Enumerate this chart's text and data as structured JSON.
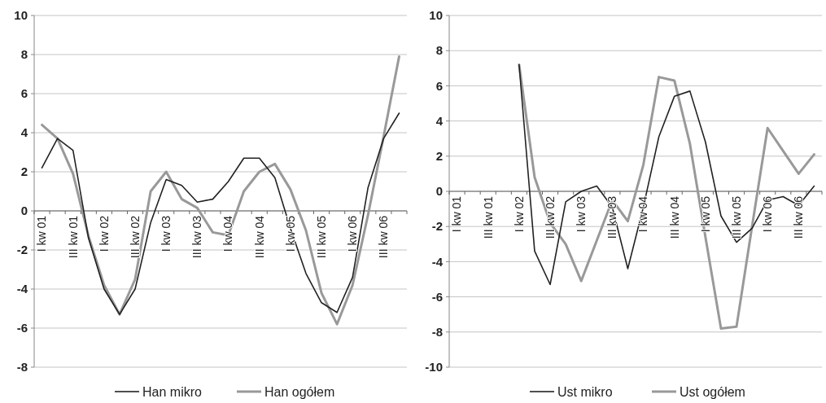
{
  "chart_data": [
    {
      "type": "line",
      "categories": [
        "I kw 01",
        null,
        "III kw 01",
        null,
        "I kw 02",
        null,
        "III kw 02",
        null,
        "I kw 03",
        null,
        "III kw 03",
        null,
        "I kw 04",
        null,
        "III kw 04",
        null,
        "I kw 05",
        null,
        "III kw 05",
        null,
        "I kw 06",
        null,
        "III kw 06",
        null
      ],
      "series": [
        {
          "name": "Han mikro",
          "color": "#222222",
          "values": [
            2.2,
            3.7,
            3.1,
            -1.4,
            -4.0,
            -5.3,
            -4.0,
            -0.6,
            1.6,
            1.3,
            0.45,
            0.6,
            1.5,
            2.7,
            2.7,
            1.7,
            -0.9,
            -3.2,
            -4.7,
            -5.2,
            -3.4,
            1.2,
            3.7,
            5.0
          ]
        },
        {
          "name": "Han ogółem",
          "color": "#999999",
          "values": [
            4.4,
            3.7,
            1.9,
            -1.3,
            -3.8,
            -5.3,
            -3.5,
            1.0,
            2.0,
            0.6,
            0.15,
            -1.1,
            -1.25,
            1.0,
            2.0,
            2.4,
            1.1,
            -1.0,
            -4.2,
            -5.8,
            -3.8,
            -0.2,
            3.8,
            7.9
          ]
        }
      ],
      "ylim": [
        -8,
        10
      ],
      "yticks": [
        -8,
        -6,
        -4,
        -2,
        0,
        2,
        4,
        6,
        8,
        10
      ],
      "grid": "y",
      "legend": "bottom"
    },
    {
      "type": "line",
      "categories": [
        "I kw 01",
        null,
        "III kw 01",
        null,
        "I kw 02",
        null,
        "III kw 02",
        null,
        "I kw 03",
        null,
        "III kw 03",
        null,
        "I kw 04",
        null,
        "III kw 04",
        null,
        "I kw 05",
        null,
        "III kw 05",
        null,
        "I kw 06",
        null,
        "III kw 06",
        null
      ],
      "series": [
        {
          "name": "Ust mikro",
          "color": "#222222",
          "values": [
            null,
            null,
            null,
            null,
            7.2,
            -3.4,
            -5.3,
            -0.6,
            0.0,
            0.3,
            -0.9,
            -4.4,
            -0.9,
            3.1,
            5.4,
            5.7,
            2.8,
            -1.4,
            -2.9,
            -2.1,
            -0.5,
            -0.3,
            -0.8,
            0.3
          ]
        },
        {
          "name": "Ust ogółem",
          "color": "#999999",
          "values": [
            null,
            null,
            null,
            null,
            7.2,
            0.8,
            -1.8,
            -3.0,
            -5.1,
            -2.8,
            -0.5,
            -1.7,
            1.5,
            6.5,
            6.3,
            2.7,
            -2.6,
            -7.8,
            -7.7,
            -2.0,
            3.6,
            2.3,
            1.0,
            2.1
          ]
        }
      ],
      "ylim": [
        -10,
        10
      ],
      "yticks": [
        -10,
        -8,
        -6,
        -4,
        -2,
        0,
        2,
        4,
        6,
        8,
        10
      ],
      "grid": "y",
      "legend": "bottom"
    }
  ]
}
